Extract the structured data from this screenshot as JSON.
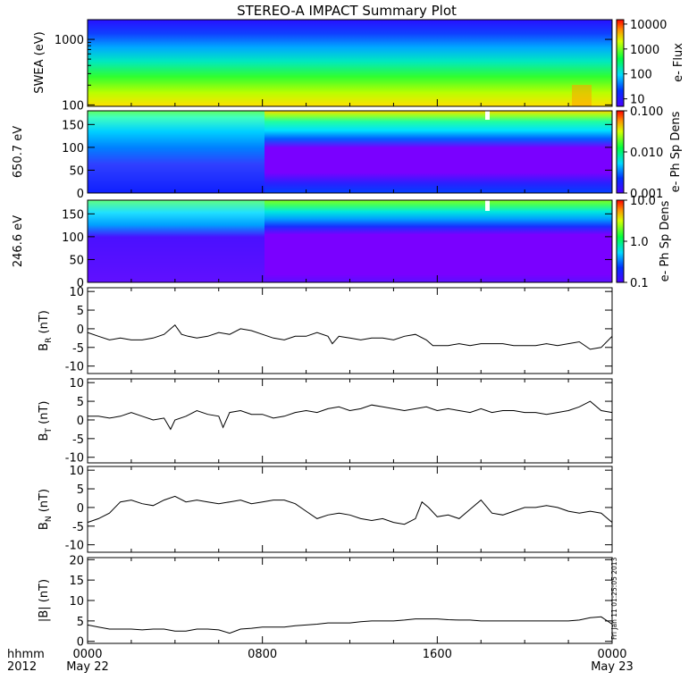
{
  "title": "STEREO-A IMPACT Summary Plot",
  "stamp": "Fri Jan 11 01:25:05 2013",
  "time_axis": {
    "row1_label": "hhmm",
    "row2_label": "2012",
    "ticks": [
      {
        "hhmm": "0000",
        "date": "May 22",
        "hour": 0
      },
      {
        "hhmm": "0800",
        "date": "",
        "hour": 8
      },
      {
        "hhmm": "1600",
        "date": "",
        "hour": 16
      },
      {
        "hhmm": "0000",
        "date": "May 23",
        "hour": 24
      }
    ]
  },
  "colors": {
    "line": "#000000",
    "frame": "#000000",
    "background": "#ffffff"
  },
  "chart_data": [
    {
      "type": "heatmap",
      "ylabel": "SWEA (eV)",
      "y_scale": "log",
      "ylim": [
        95,
        2000
      ],
      "yticks": [
        {
          "v": 100,
          "label": "100"
        },
        {
          "v": 1000,
          "label": "1000"
        }
      ],
      "colorbar": {
        "label": "e- Flux",
        "scale": "log",
        "range": [
          5,
          15000
        ],
        "ticks": [
          {
            "v": 10,
            "label": "10"
          },
          {
            "v": 100,
            "label": "100"
          },
          {
            "v": 1000,
            "label": "1000"
          },
          {
            "v": 10000,
            "label": "10000"
          }
        ]
      },
      "hour_range": [
        0,
        24
      ],
      "features": [
        {
          "from_hour": 0,
          "to_hour": 24,
          "description": "flux falls from ~5000 near 100 eV to ~15 near 1500 eV"
        },
        {
          "from_hour": 22.3,
          "to_hour": 23.2,
          "description": "enhanced low-energy flux (orange)"
        }
      ]
    },
    {
      "type": "heatmap",
      "ylabel": "650.7 eV",
      "ylim": [
        0,
        180
      ],
      "yticks": [
        {
          "v": 0,
          "label": "0"
        },
        {
          "v": 50,
          "label": "50"
        },
        {
          "v": 100,
          "label": "100"
        },
        {
          "v": 150,
          "label": "150"
        }
      ],
      "colorbar": {
        "label": "e- Ph Sp Dens",
        "scale": "log",
        "range": [
          0.001,
          0.1
        ],
        "ticks": [
          {
            "v": 0.001,
            "label": "0.001"
          },
          {
            "v": 0.01,
            "label": "0.010"
          },
          {
            "v": 0.1,
            "label": "0.100"
          }
        ]
      },
      "hour_range": [
        0,
        24
      ],
      "features": [
        {
          "from_hour": 0,
          "to_hour": 7.8,
          "description": "broad distribution, strong field-aligned beam near 150-180 deg"
        },
        {
          "from_hour": 7.8,
          "to_hour": 24,
          "description": "depletion (purple) 40-120 deg, intense strahl above 150 deg"
        },
        {
          "from_hour": 18.1,
          "to_hour": 18.3,
          "description": "data gap"
        }
      ]
    },
    {
      "type": "heatmap",
      "ylabel": "246.6 eV",
      "ylim": [
        0,
        180
      ],
      "yticks": [
        {
          "v": 0,
          "label": "0"
        },
        {
          "v": 50,
          "label": "50"
        },
        {
          "v": 100,
          "label": "100"
        },
        {
          "v": 150,
          "label": "150"
        }
      ],
      "colorbar": {
        "label": "e- Ph Sp Dens",
        "scale": "log",
        "range": [
          0.1,
          10
        ],
        "ticks": [
          {
            "v": 0.1,
            "label": "0.1"
          },
          {
            "v": 1,
            "label": "1.0"
          },
          {
            "v": 10,
            "label": "10.0"
          }
        ]
      },
      "hour_range": [
        0,
        24
      ],
      "features": [
        {
          "from_hour": 0,
          "to_hour": 24,
          "description": "low values below ~110 deg, strahl above ~140 deg"
        },
        {
          "from_hour": 18.1,
          "to_hour": 18.3,
          "description": "data gap"
        }
      ]
    },
    {
      "type": "line",
      "ylabel": "B",
      "ylabel_sub": "R",
      "ylabel_unit": " (nT)",
      "ylim": [
        -12,
        11
      ],
      "yticks": [
        {
          "v": -10,
          "label": "-10"
        },
        {
          "v": -5,
          "label": "-5"
        },
        {
          "v": 0,
          "label": "0"
        },
        {
          "v": 5,
          "label": "5"
        },
        {
          "v": 10,
          "label": "10"
        }
      ],
      "x": [
        0,
        0.5,
        1,
        1.5,
        2,
        2.5,
        3,
        3.5,
        4,
        4.3,
        4.6,
        5,
        5.5,
        6,
        6.5,
        7,
        7.5,
        8,
        8.5,
        9,
        9.5,
        10,
        10.5,
        11,
        11.2,
        11.5,
        12,
        12.5,
        13,
        13.5,
        14,
        14.5,
        15,
        15.5,
        15.8,
        16,
        16.5,
        17,
        17.5,
        18,
        18.5,
        19,
        19.5,
        20,
        20.5,
        21,
        21.5,
        22,
        22.5,
        23,
        23.5,
        24
      ],
      "y": [
        -1,
        -2,
        -3,
        -2.5,
        -3,
        -3,
        -2.5,
        -1.5,
        1,
        -1.5,
        -2,
        -2.5,
        -2,
        -1,
        -1.5,
        0,
        -0.5,
        -1.5,
        -2.5,
        -3,
        -2,
        -2,
        -1,
        -2,
        -4,
        -2,
        -2.5,
        -3,
        -2.5,
        -2.5,
        -3,
        -2,
        -1.5,
        -3,
        -4.5,
        -4.5,
        -4.5,
        -4,
        -4.5,
        -4,
        -4,
        -4,
        -4.5,
        -4.5,
        -4.5,
        -4,
        -4.5,
        -4,
        -3.5,
        -5.5,
        -5,
        -2
      ]
    },
    {
      "type": "line",
      "ylabel": "B",
      "ylabel_sub": "T",
      "ylabel_unit": " (nT)",
      "ylim": [
        -11.5,
        11
      ],
      "yticks": [
        {
          "v": -10,
          "label": "-10"
        },
        {
          "v": -5,
          "label": "-5"
        },
        {
          "v": 0,
          "label": "0"
        },
        {
          "v": 5,
          "label": "5"
        },
        {
          "v": 10,
          "label": "10"
        }
      ],
      "x": [
        0,
        0.5,
        1,
        1.5,
        2,
        2.5,
        3,
        3.5,
        3.8,
        4,
        4.5,
        5,
        5.5,
        6,
        6.2,
        6.5,
        7,
        7.5,
        8,
        8.5,
        9,
        9.5,
        10,
        10.5,
        11,
        11.5,
        12,
        12.5,
        13,
        13.5,
        14,
        14.5,
        15,
        15.5,
        16,
        16.5,
        17,
        17.5,
        18,
        18.5,
        19,
        19.5,
        20,
        20.5,
        21,
        21.5,
        22,
        22.5,
        23,
        23.5,
        24
      ],
      "y": [
        1,
        1,
        0.5,
        1,
        2,
        1,
        0,
        0.5,
        -2.5,
        0,
        1,
        2.5,
        1.5,
        1,
        -2,
        2,
        2.5,
        1.5,
        1.5,
        0.5,
        1,
        2,
        2.5,
        2,
        3,
        3.5,
        2.5,
        3,
        4,
        3.5,
        3,
        2.5,
        3,
        3.5,
        2.5,
        3,
        2.5,
        2,
        3,
        2,
        2.5,
        2.5,
        2,
        2,
        1.5,
        2,
        2.5,
        3.5,
        5,
        2.5,
        2
      ]
    },
    {
      "type": "line",
      "ylabel": "B",
      "ylabel_sub": "N",
      "ylabel_unit": " (nT)",
      "ylim": [
        -12,
        11
      ],
      "yticks": [
        {
          "v": -10,
          "label": "-10"
        },
        {
          "v": -5,
          "label": "-5"
        },
        {
          "v": 0,
          "label": "0"
        },
        {
          "v": 5,
          "label": "5"
        },
        {
          "v": 10,
          "label": "10"
        }
      ],
      "x": [
        0,
        0.5,
        1,
        1.5,
        2,
        2.5,
        3,
        3.5,
        4,
        4.5,
        5,
        5.5,
        6,
        6.5,
        7,
        7.5,
        8,
        8.5,
        9,
        9.5,
        10,
        10.5,
        11,
        11.5,
        12,
        12.5,
        13,
        13.5,
        14,
        14.5,
        15,
        15.3,
        15.6,
        16,
        16.5,
        17,
        17.5,
        18,
        18.5,
        19,
        19.5,
        20,
        20.5,
        21,
        21.5,
        22,
        22.5,
        23,
        23.5,
        24
      ],
      "y": [
        -4,
        -3,
        -1.5,
        1.5,
        2,
        1,
        0.5,
        2,
        3,
        1.5,
        2,
        1.5,
        1,
        1.5,
        2,
        1,
        1.5,
        2,
        2,
        1,
        -1,
        -3,
        -2,
        -1.5,
        -2,
        -3,
        -3.5,
        -3,
        -4,
        -4.5,
        -3,
        1.5,
        0,
        -2.5,
        -2,
        -3,
        -0.5,
        2,
        -1.5,
        -2,
        -1,
        0,
        0,
        0.5,
        0,
        -1,
        -1.5,
        -1,
        -1.5,
        -4
      ]
    },
    {
      "type": "line",
      "ylabel": "|B| (nT)",
      "ylim": [
        -0.5,
        20.5
      ],
      "yticks": [
        {
          "v": 0,
          "label": "0"
        },
        {
          "v": 5,
          "label": "5"
        },
        {
          "v": 10,
          "label": "10"
        },
        {
          "v": 15,
          "label": "15"
        },
        {
          "v": 20,
          "label": "20"
        }
      ],
      "x": [
        0,
        0.5,
        1,
        1.5,
        2,
        2.5,
        3,
        3.5,
        4,
        4.5,
        5,
        5.5,
        6,
        6.5,
        7,
        7.5,
        8,
        8.5,
        9,
        9.5,
        10,
        10.5,
        11,
        11.5,
        12,
        12.5,
        13,
        13.5,
        14,
        14.5,
        15,
        15.5,
        16,
        16.5,
        17,
        17.5,
        18,
        18.5,
        19,
        19.5,
        20,
        20.5,
        21,
        21.5,
        22,
        22.5,
        23,
        23.5,
        24
      ],
      "y": [
        4,
        3.5,
        3,
        3,
        3,
        2.8,
        3,
        3,
        2.5,
        2.5,
        3,
        3,
        2.8,
        2,
        3,
        3.2,
        3.5,
        3.5,
        3.5,
        3.8,
        4,
        4.2,
        4.5,
        4.5,
        4.5,
        4.8,
        5,
        5,
        5,
        5.2,
        5.5,
        5.5,
        5.5,
        5.3,
        5.2,
        5.2,
        5,
        5,
        5,
        5,
        5,
        5,
        5,
        5,
        5,
        5.2,
        5.8,
        6,
        4.2
      ]
    }
  ]
}
